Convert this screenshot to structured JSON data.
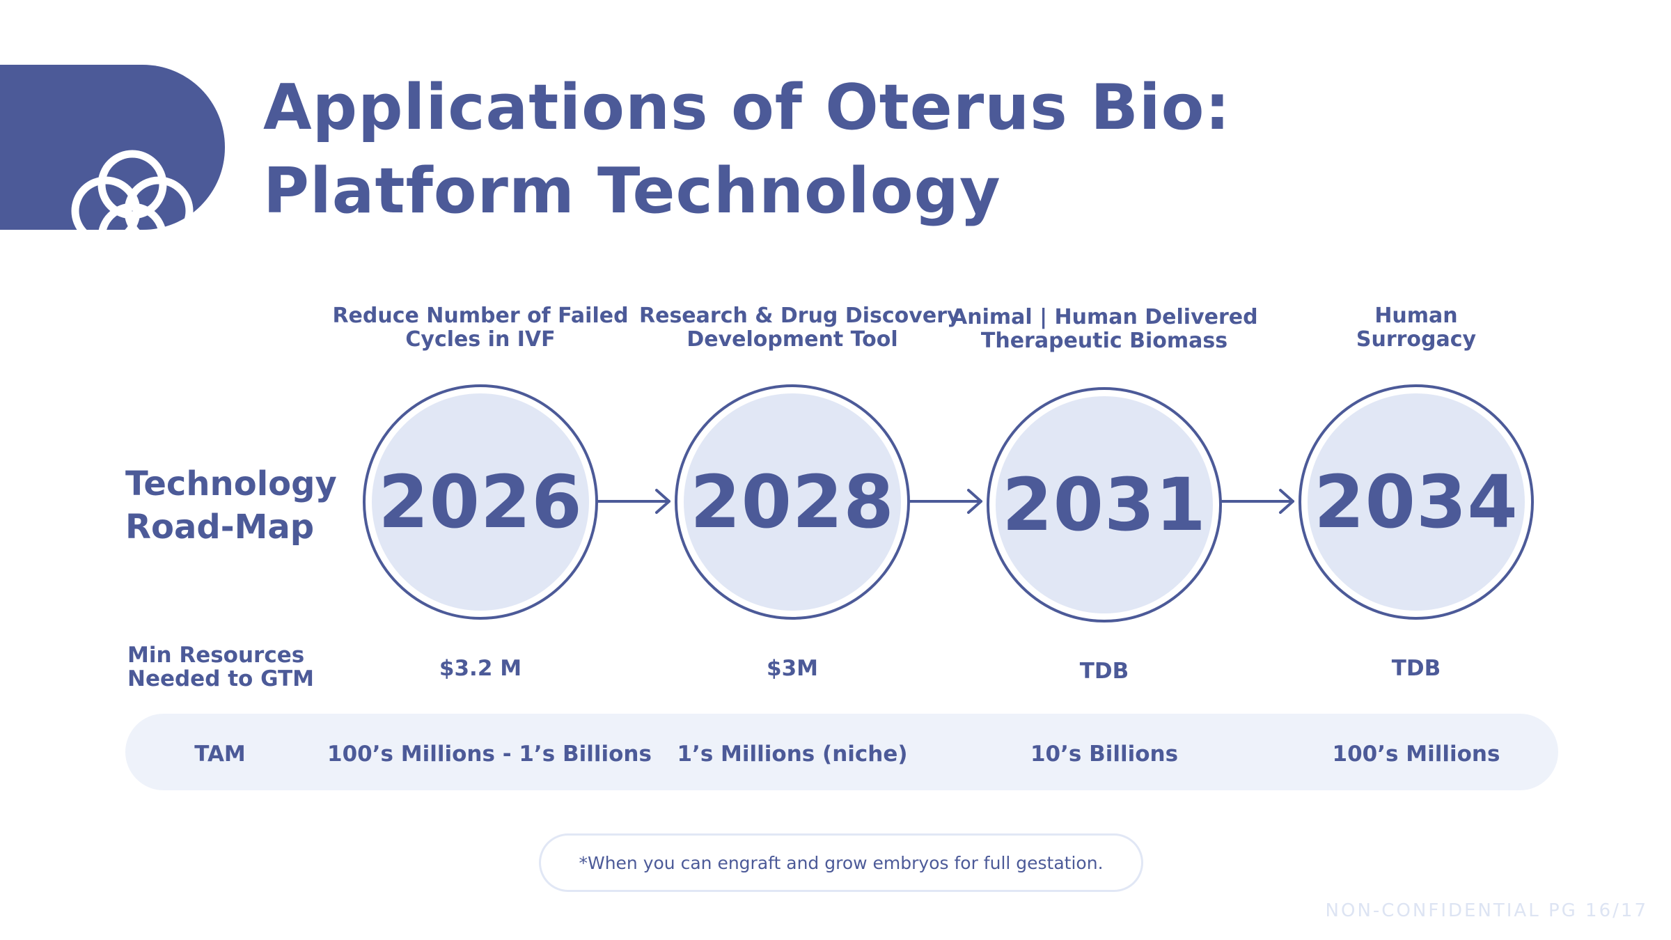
{
  "title": {
    "line1": "Applications of Oterus Bio:",
    "line2": "Platform Technology"
  },
  "logo_icon": "interlocking-rings-icon",
  "roadmap_label": {
    "line1": "Technology",
    "line2": "Road-Map"
  },
  "milestones": [
    {
      "label_line1": "Reduce Number of Failed",
      "label_line2": "Cycles in IVF",
      "year": "2026",
      "resources": "$3.2 M",
      "tam": "100’s Millions - 1’s Billions"
    },
    {
      "label_line1": "Research & Drug Discovery",
      "label_line2": "Development Tool",
      "year": "2028",
      "resources": "$3M",
      "tam": "1’s Millions (niche)"
    },
    {
      "label_line1": "Animal | Human Delivered",
      "label_line2": "Therapeutic Biomass",
      "year": "2031",
      "resources": "TDB",
      "tam": "10’s Billions"
    },
    {
      "label_line1": "Human",
      "label_line2": "Surrogacy",
      "year": "2034",
      "resources": "TDB",
      "tam": "100’s Millions"
    }
  ],
  "resources_label": {
    "line1": "Min Resources",
    "line2": "Needed to GTM"
  },
  "tam_label": "TAM",
  "footnote": "*When you can engraft and grow embryos for full gestation.",
  "page_label": "NON-CONFIDENTIAL PG 16/17",
  "colors": {
    "primary": "#4c5a98",
    "circle_fill": "#e1e7f5",
    "tam_bar": "#eef2fa",
    "page_label": "#dde4f3"
  }
}
